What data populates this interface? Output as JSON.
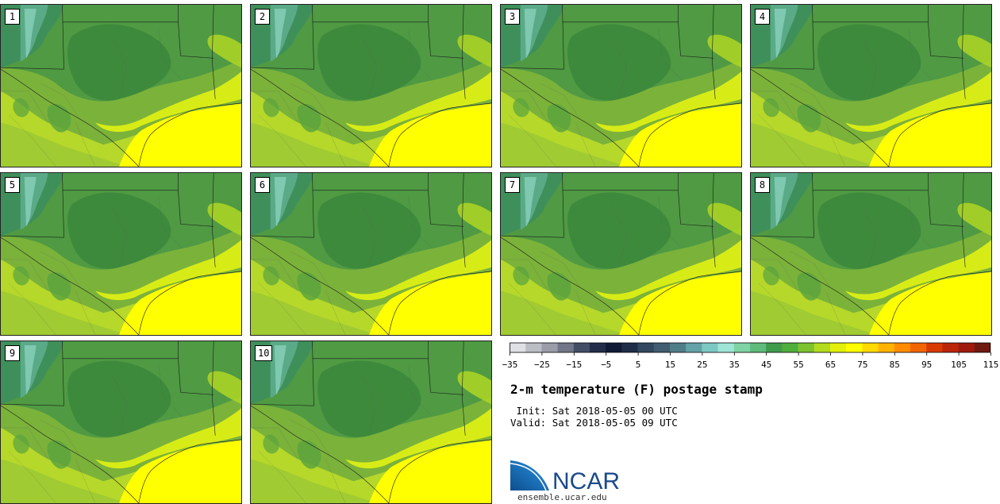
{
  "panels": [
    {
      "label": "1"
    },
    {
      "label": "2"
    },
    {
      "label": "3"
    },
    {
      "label": "4"
    },
    {
      "label": "5"
    },
    {
      "label": "6"
    },
    {
      "label": "7"
    },
    {
      "label": "8"
    },
    {
      "label": "9"
    },
    {
      "label": "10"
    }
  ],
  "title": "2-m temperature (F) postage stamp",
  "init_label": "Init:",
  "init_value": "Sat 2018-05-05 00 UTC",
  "valid_label": "Valid:",
  "valid_value": "Sat 2018-05-05 09 UTC",
  "colorbar": {
    "tick_labels": [
      "−35",
      "−25",
      "−15",
      "−5",
      "5",
      "15",
      "25",
      "35",
      "45",
      "55",
      "65",
      "75",
      "85",
      "95",
      "105",
      "115"
    ],
    "colors": [
      "#dfe0e6",
      "#bcbec6",
      "#9a9ca8",
      "#717788",
      "#434d66",
      "#232c48",
      "#111a35",
      "#1f2d48",
      "#33475e",
      "#405d71",
      "#4f7d88",
      "#63a3a8",
      "#7ec8c4",
      "#9ee5d8",
      "#7fd3a5",
      "#5fbb7c",
      "#3e9c4c",
      "#4fae3c",
      "#7cc32f",
      "#b2dc1d",
      "#e2f00c",
      "#ffff00",
      "#ffda00",
      "#ffb300",
      "#ff8c00",
      "#f26400",
      "#d93a00",
      "#bb2508",
      "#9f1a0c",
      "#6f1a10"
    ]
  },
  "logo_text": "NCAR",
  "logo_url": "ensemble.ucar.edu"
}
